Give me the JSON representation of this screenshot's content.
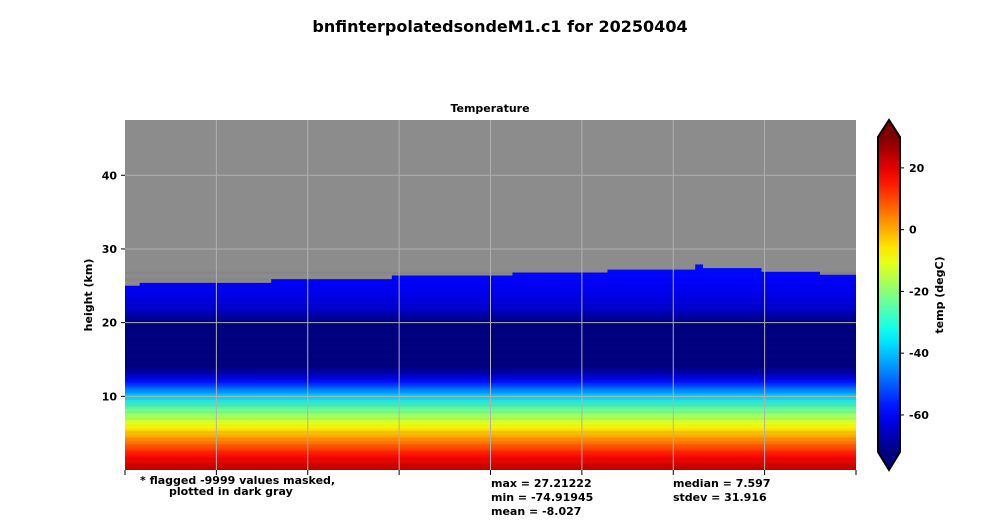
{
  "chart_data": {
    "type": "heatmap",
    "title": "bnfinterpolatedsondeM1.c1 for 20250404",
    "subtitle": "Temperature",
    "xlabel": "",
    "ylabel": "height (km)",
    "y_ticks": [
      10,
      20,
      30,
      40
    ],
    "ylim": [
      0,
      47.5
    ],
    "grid": true,
    "x_tick_count": 8,
    "colorbar": {
      "label": "temp (degC)",
      "ticks": [
        20,
        0,
        -20,
        -40,
        -60
      ],
      "range": [
        -72,
        30
      ],
      "colormap": "jet",
      "extend": "both"
    },
    "mask_color": "#8c8c8c",
    "valid_top_km": [
      {
        "x": [
          0.0,
          0.02
        ],
        "top": 25.0
      },
      {
        "x": [
          0.02,
          0.2
        ],
        "top": 25.4
      },
      {
        "x": [
          0.2,
          0.365
        ],
        "top": 25.9
      },
      {
        "x": [
          0.365,
          0.53
        ],
        "top": 26.4
      },
      {
        "x": [
          0.53,
          0.66
        ],
        "top": 26.8
      },
      {
        "x": [
          0.66,
          0.78
        ],
        "top": 27.2
      },
      {
        "x": [
          0.78,
          0.79
        ],
        "top": 27.9
      },
      {
        "x": [
          0.79,
          0.87
        ],
        "top": 27.4
      },
      {
        "x": [
          0.87,
          0.95
        ],
        "top": 26.9
      },
      {
        "x": [
          0.95,
          1.0
        ],
        "top": 26.5
      }
    ],
    "temperature_profile": [
      {
        "h": 0,
        "t": 24
      },
      {
        "h": 2,
        "t": 16
      },
      {
        "h": 4,
        "t": 4
      },
      {
        "h": 6,
        "t": -9
      },
      {
        "h": 8,
        "t": -22
      },
      {
        "h": 10,
        "t": -38
      },
      {
        "h": 11,
        "t": -48
      },
      {
        "h": 12,
        "t": -58
      },
      {
        "h": 13,
        "t": -66
      },
      {
        "h": 14,
        "t": -72
      },
      {
        "h": 20,
        "t": -72
      },
      {
        "h": 22,
        "t": -64
      },
      {
        "h": 25,
        "t": -60
      },
      {
        "h": 28,
        "t": -58
      }
    ],
    "annotations": {
      "flag_line1": "* flagged -9999 values masked,",
      "flag_line2": "plotted in dark gray",
      "max": "max = 27.21222",
      "min": "min = -74.91945",
      "mean": "mean = -8.027",
      "median": "median = 7.597",
      "stdev": "stdev = 31.916"
    }
  }
}
